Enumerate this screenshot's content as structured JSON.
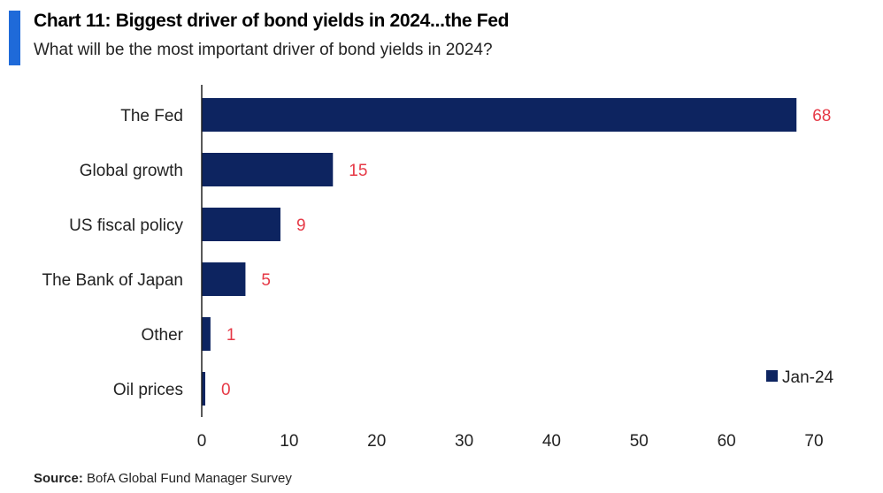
{
  "header": {
    "title": "Chart 11: Biggest driver of bond yields in 2024...the Fed",
    "subtitle": "What will be the most important driver of bond yields in 2024?"
  },
  "source": {
    "label": "Source:",
    "text": "BofA Global Fund Manager Survey"
  },
  "colors": {
    "accent": "#1f6ad9",
    "bar": "#0d2460",
    "value_label": "#e63946"
  },
  "chart_data": {
    "type": "bar",
    "orientation": "horizontal",
    "categories": [
      "The Fed",
      "Global growth",
      "US fiscal policy",
      "The Bank of Japan",
      "Other",
      "Oil prices"
    ],
    "series": [
      {
        "name": "Jan-24",
        "values": [
          68,
          15,
          9,
          5,
          1,
          0
        ]
      }
    ],
    "value_labels": [
      "68",
      "15",
      "9",
      "5",
      "1",
      "0"
    ],
    "xlim": [
      0,
      70
    ],
    "xticks": [
      0,
      10,
      20,
      30,
      40,
      50,
      60,
      70
    ],
    "grid": false,
    "legend_position": "bottom-right"
  }
}
